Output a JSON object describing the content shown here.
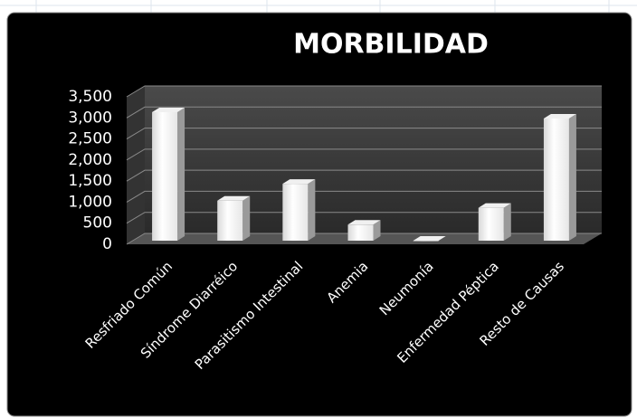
{
  "chart_data": {
    "type": "bar3d",
    "title": "MORBILIDAD",
    "categories": [
      "Resfriado Común",
      "Síndrome Diarréico",
      "Parasitismo Intestinal",
      "Anemia",
      "Neumonía",
      "Enfermedad Péptica",
      "Resto de Causas"
    ],
    "values": [
      3050,
      950,
      1350,
      380,
      0,
      780,
      2900
    ],
    "color": "#ffffff",
    "ylim": [
      0,
      3500
    ],
    "yticks": [
      0,
      500,
      {
        "value": 1000,
        "label": "1,000"
      },
      {
        "value": 1500,
        "label": "1,500"
      },
      {
        "value": 2000,
        "label": "2,000"
      },
      {
        "value": 2500,
        "label": "2,500"
      },
      {
        "value": 3000,
        "label": "3,000"
      },
      {
        "value": 3500,
        "label": "3,500"
      }
    ],
    "grid": true
  }
}
